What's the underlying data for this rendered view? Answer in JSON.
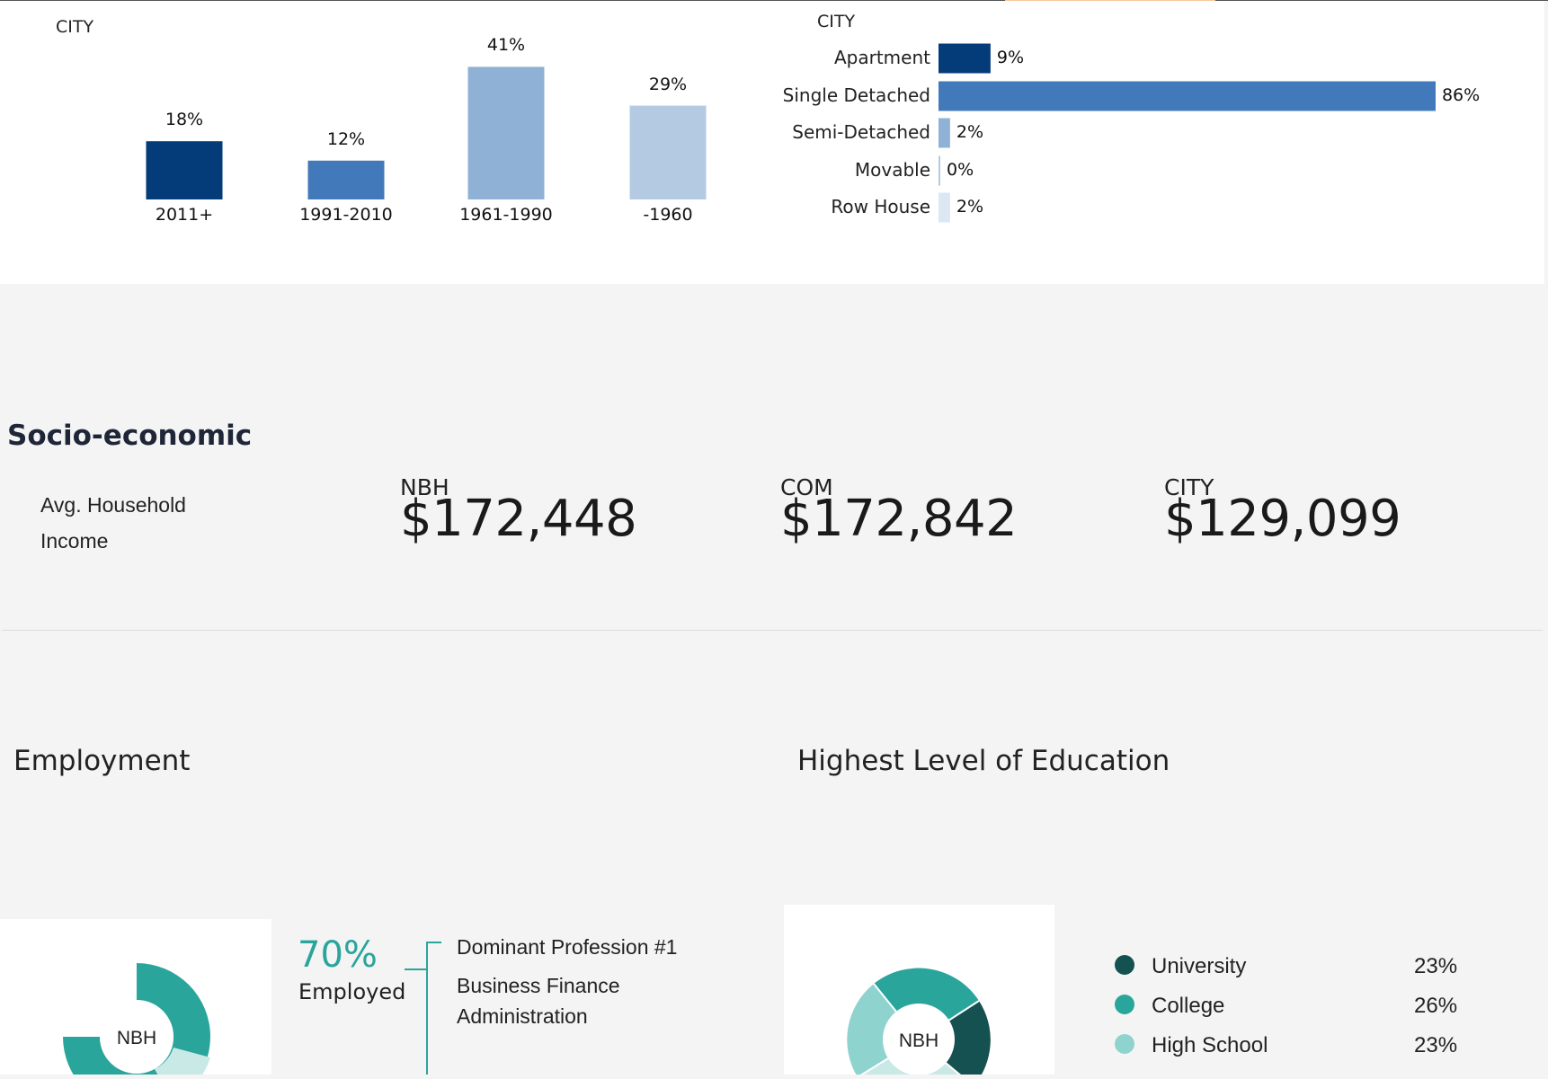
{
  "age_chart": {
    "header": "CITY",
    "chart_data": {
      "type": "bar",
      "categories": [
        "2011+",
        "1991-2010",
        "1961-1990",
        "-1960"
      ],
      "values": [
        18,
        12,
        41,
        29
      ],
      "value_labels": [
        "18%",
        "12%",
        "41%",
        "29%"
      ],
      "colors": [
        "#043b79",
        "#4279ba",
        "#90b1d6",
        "#b4cae3"
      ]
    }
  },
  "type_chart": {
    "header": "CITY",
    "chart_data": {
      "type": "bar",
      "orientation": "horizontal",
      "categories": [
        "Apartment",
        "Single Detached",
        "Semi-Detached",
        "Movable",
        "Row House"
      ],
      "values": [
        9,
        86,
        2,
        0,
        2
      ],
      "value_labels": [
        "9%",
        "86%",
        "2%",
        "0%",
        "2%"
      ],
      "colors": [
        "#043b79",
        "#4279ba",
        "#90b1d6",
        "#b4cae3",
        "#dce7f4"
      ]
    }
  },
  "socio": {
    "title": "Socio-economic",
    "metric_label_line1": "Avg. Household",
    "metric_label_line2": "Income",
    "nbh": {
      "label": "NBH",
      "value": "$172,448"
    },
    "com": {
      "label": "COM",
      "value": "$172,842"
    },
    "city": {
      "label": "CITY",
      "value": "$129,099"
    }
  },
  "employment": {
    "title": "Employment",
    "donut_label": "NBH",
    "employed_pct": "70%",
    "employed_label": "Employed",
    "profession_title": "Dominant Profession #1",
    "profession_line1": "Business Finance",
    "profession_line2": "Administration",
    "colors": [
      "#2aa59b",
      "#c9e9e6"
    ]
  },
  "education": {
    "title": "Highest Level of Education",
    "donut_label": "NBH",
    "legend": [
      {
        "name": "University",
        "value": "23%",
        "color": "#155150"
      },
      {
        "name": "College",
        "value": "26%",
        "color": "#2aa59b"
      },
      {
        "name": "High School",
        "value": "23%",
        "color": "#8ed3ce"
      }
    ]
  }
}
